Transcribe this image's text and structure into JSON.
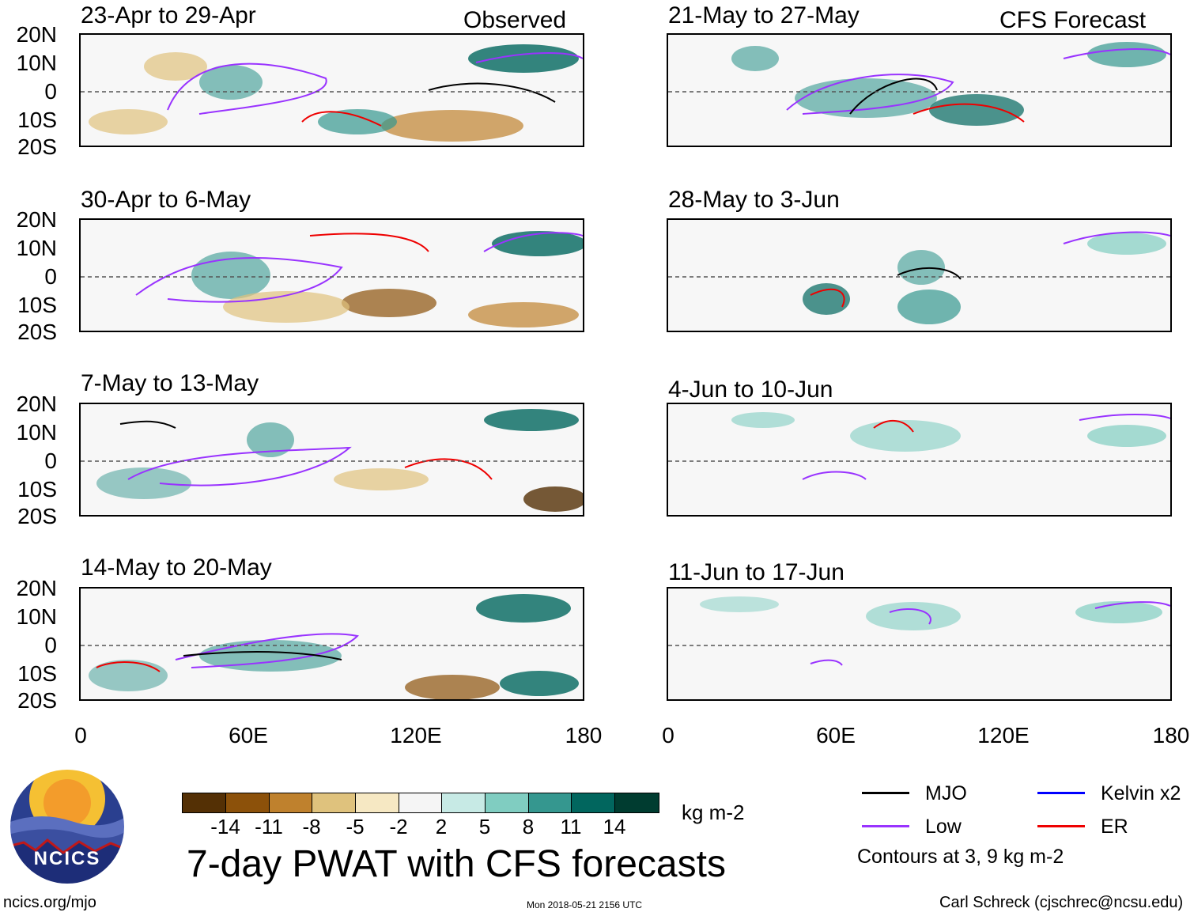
{
  "observed_label": "Observed",
  "forecast_label": "CFS Forecast",
  "lat_labels": [
    "20N",
    "10N",
    "0",
    "10S",
    "20S"
  ],
  "lon_labels": [
    "0",
    "60E",
    "120E",
    "180"
  ],
  "panels_left": [
    {
      "title": "23-Apr to 29-Apr"
    },
    {
      "title": "30-Apr to 6-May"
    },
    {
      "title": "7-May to 13-May"
    },
    {
      "title": "14-May to 20-May"
    }
  ],
  "panels_right": [
    {
      "title": "21-May to 27-May"
    },
    {
      "title": "28-May to 3-Jun"
    },
    {
      "title": "4-Jun to 10-Jun"
    },
    {
      "title": "11-Jun to 17-Jun"
    }
  ],
  "colorbar": {
    "colors": [
      "#543005",
      "#8c510a",
      "#bf812d",
      "#dfc27d",
      "#f6e8c3",
      "#f5f5f5",
      "#c7eae5",
      "#80cdc1",
      "#35978f",
      "#01665e",
      "#003c30"
    ],
    "labels": [
      "-14",
      "-11",
      "-8",
      "-5",
      "-2",
      "2",
      "5",
      "8",
      "11",
      "14"
    ],
    "units": "kg m-2"
  },
  "title": "7-day PWAT with CFS forecasts",
  "legend": {
    "items": [
      {
        "label": "MJO",
        "color": "#000000"
      },
      {
        "label": "Kelvin x2",
        "color": "#0000ff"
      },
      {
        "label": "Low",
        "color": "#9933ff"
      },
      {
        "label": "ER",
        "color": "#ee0000"
      }
    ],
    "note": "Contours at 3, 9 kg m-2"
  },
  "logo_text": "NCICS",
  "footer": {
    "url": "ncics.org/mjo",
    "timestamp": "Mon 2018-05-21 2156 UTC",
    "author": "Carl Schreck (cjschrec@ncsu.edu)"
  }
}
